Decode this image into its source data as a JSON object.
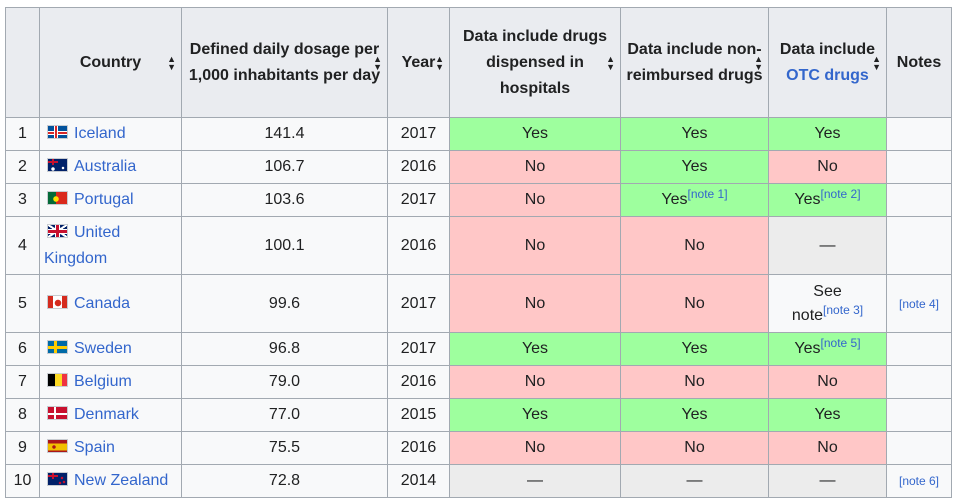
{
  "headers": {
    "rank": "",
    "country": "Country",
    "dosage": "Defined daily dosage per 1,000 inhabitants per day",
    "year": "Year",
    "hospitals": "Data include drugs dispensed in hospitals",
    "nonreimbursed": "Data include non-reimbursed drugs",
    "otc_prefix": "Data include",
    "otc_link": "OTC drugs",
    "notes": "Notes"
  },
  "rows": [
    {
      "rank": "1",
      "country": "Iceland",
      "flag": "iceland",
      "dosage": "141.4",
      "year": "2017",
      "hospitals": {
        "text": "Yes",
        "status": "yes",
        "ref": ""
      },
      "nonreimbursed": {
        "text": "Yes",
        "status": "yes",
        "ref": ""
      },
      "otc": {
        "text": "Yes",
        "status": "yes",
        "ref": ""
      },
      "notes": ""
    },
    {
      "rank": "2",
      "country": "Australia",
      "flag": "australia",
      "dosage": "106.7",
      "year": "2016",
      "hospitals": {
        "text": "No",
        "status": "no",
        "ref": ""
      },
      "nonreimbursed": {
        "text": "Yes",
        "status": "yes",
        "ref": ""
      },
      "otc": {
        "text": "No",
        "status": "no",
        "ref": ""
      },
      "notes": ""
    },
    {
      "rank": "3",
      "country": "Portugal",
      "flag": "portugal",
      "dosage": "103.6",
      "year": "2017",
      "hospitals": {
        "text": "No",
        "status": "no",
        "ref": ""
      },
      "nonreimbursed": {
        "text": "Yes",
        "status": "yes",
        "ref": "[note 1]"
      },
      "otc": {
        "text": "Yes",
        "status": "yes",
        "ref": "[note 2]"
      },
      "notes": ""
    },
    {
      "rank": "4",
      "country": "United Kingdom",
      "flag": "uk",
      "dosage": "100.1",
      "year": "2016",
      "hospitals": {
        "text": "No",
        "status": "no",
        "ref": ""
      },
      "nonreimbursed": {
        "text": "No",
        "status": "no",
        "ref": ""
      },
      "otc": {
        "text": "—",
        "status": "na",
        "ref": ""
      },
      "notes": ""
    },
    {
      "rank": "5",
      "country": "Canada",
      "flag": "canada",
      "dosage": "99.6",
      "year": "2017",
      "hospitals": {
        "text": "No",
        "status": "no",
        "ref": ""
      },
      "nonreimbursed": {
        "text": "No",
        "status": "no",
        "ref": ""
      },
      "otc": {
        "text": "See note",
        "status": "plain",
        "ref": "[note 3]"
      },
      "notes": "[note 4]"
    },
    {
      "rank": "6",
      "country": "Sweden",
      "flag": "sweden",
      "dosage": "96.8",
      "year": "2017",
      "hospitals": {
        "text": "Yes",
        "status": "yes",
        "ref": ""
      },
      "nonreimbursed": {
        "text": "Yes",
        "status": "yes",
        "ref": ""
      },
      "otc": {
        "text": "Yes",
        "status": "yes",
        "ref": "[note 5]"
      },
      "notes": ""
    },
    {
      "rank": "7",
      "country": "Belgium",
      "flag": "belgium",
      "dosage": "79.0",
      "year": "2016",
      "hospitals": {
        "text": "No",
        "status": "no",
        "ref": ""
      },
      "nonreimbursed": {
        "text": "No",
        "status": "no",
        "ref": ""
      },
      "otc": {
        "text": "No",
        "status": "no",
        "ref": ""
      },
      "notes": ""
    },
    {
      "rank": "8",
      "country": "Denmark",
      "flag": "denmark",
      "dosage": "77.0",
      "year": "2015",
      "hospitals": {
        "text": "Yes",
        "status": "yes",
        "ref": ""
      },
      "nonreimbursed": {
        "text": "Yes",
        "status": "yes",
        "ref": ""
      },
      "otc": {
        "text": "Yes",
        "status": "yes",
        "ref": ""
      },
      "notes": ""
    },
    {
      "rank": "9",
      "country": "Spain",
      "flag": "spain",
      "dosage": "75.5",
      "year": "2016",
      "hospitals": {
        "text": "No",
        "status": "no",
        "ref": ""
      },
      "nonreimbursed": {
        "text": "No",
        "status": "no",
        "ref": ""
      },
      "otc": {
        "text": "No",
        "status": "no",
        "ref": ""
      },
      "notes": ""
    },
    {
      "rank": "10",
      "country": "New Zealand",
      "flag": "newzealand",
      "dosage": "72.8",
      "year": "2014",
      "hospitals": {
        "text": "—",
        "status": "na",
        "ref": ""
      },
      "nonreimbursed": {
        "text": "—",
        "status": "na",
        "ref": ""
      },
      "otc": {
        "text": "—",
        "status": "na",
        "ref": ""
      },
      "notes": "[note 6]"
    }
  ],
  "colors": {
    "yes": "#9eff9e",
    "no": "#ffc7c7",
    "na": "#ececec",
    "link": "#3366cc",
    "header": "#eaecf0"
  }
}
